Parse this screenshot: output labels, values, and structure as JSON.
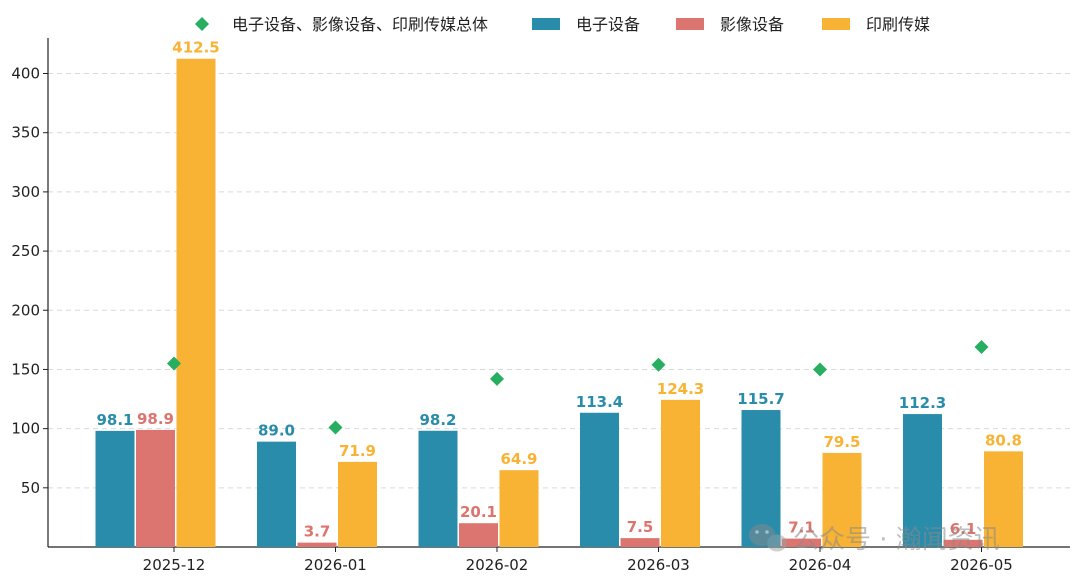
{
  "chart_data": {
    "type": "bar",
    "title": "",
    "xlabel": "",
    "ylabel": "",
    "categories": [
      "2025-12",
      "2026-01",
      "2026-02",
      "2026-03",
      "2026-04",
      "2026-05"
    ],
    "ylim": [
      0,
      430
    ],
    "yticks": [
      50,
      100,
      150,
      200,
      250,
      300,
      350,
      400
    ],
    "grid": "horizontal-dashed",
    "legend_position": "top-center",
    "series": [
      {
        "name": "电子设备",
        "values": [
          98.1,
          89.0,
          98.2,
          113.4,
          115.7,
          112.3
        ],
        "labels": [
          "98.1",
          "89.0",
          "98.2",
          "113.4",
          "115.7",
          "112.3"
        ],
        "color": "#2a8cab"
      },
      {
        "name": "影像设备",
        "values": [
          98.9,
          3.7,
          20.1,
          7.5,
          7.1,
          6.1
        ],
        "labels": [
          "98.9",
          "3.7",
          "20.1",
          "7.5",
          "7.1",
          "6.1"
        ],
        "color": "#dc7470"
      },
      {
        "name": "印刷传媒",
        "values": [
          412.5,
          71.9,
          64.9,
          124.3,
          79.5,
          80.8
        ],
        "labels": [
          "412.5",
          "71.9",
          "64.9",
          "124.3",
          "79.5",
          "80.8"
        ],
        "color": "#f8b334"
      }
    ],
    "scatter_series": {
      "name": "电子设备、影像设备、印刷传媒总体",
      "values": [
        155,
        101,
        142,
        154,
        150,
        169
      ],
      "color": "#27ae60",
      "marker": "diamond"
    }
  },
  "watermark": {
    "text": "公众号 · 瀚闻资讯",
    "icon": "wechat-icon"
  }
}
